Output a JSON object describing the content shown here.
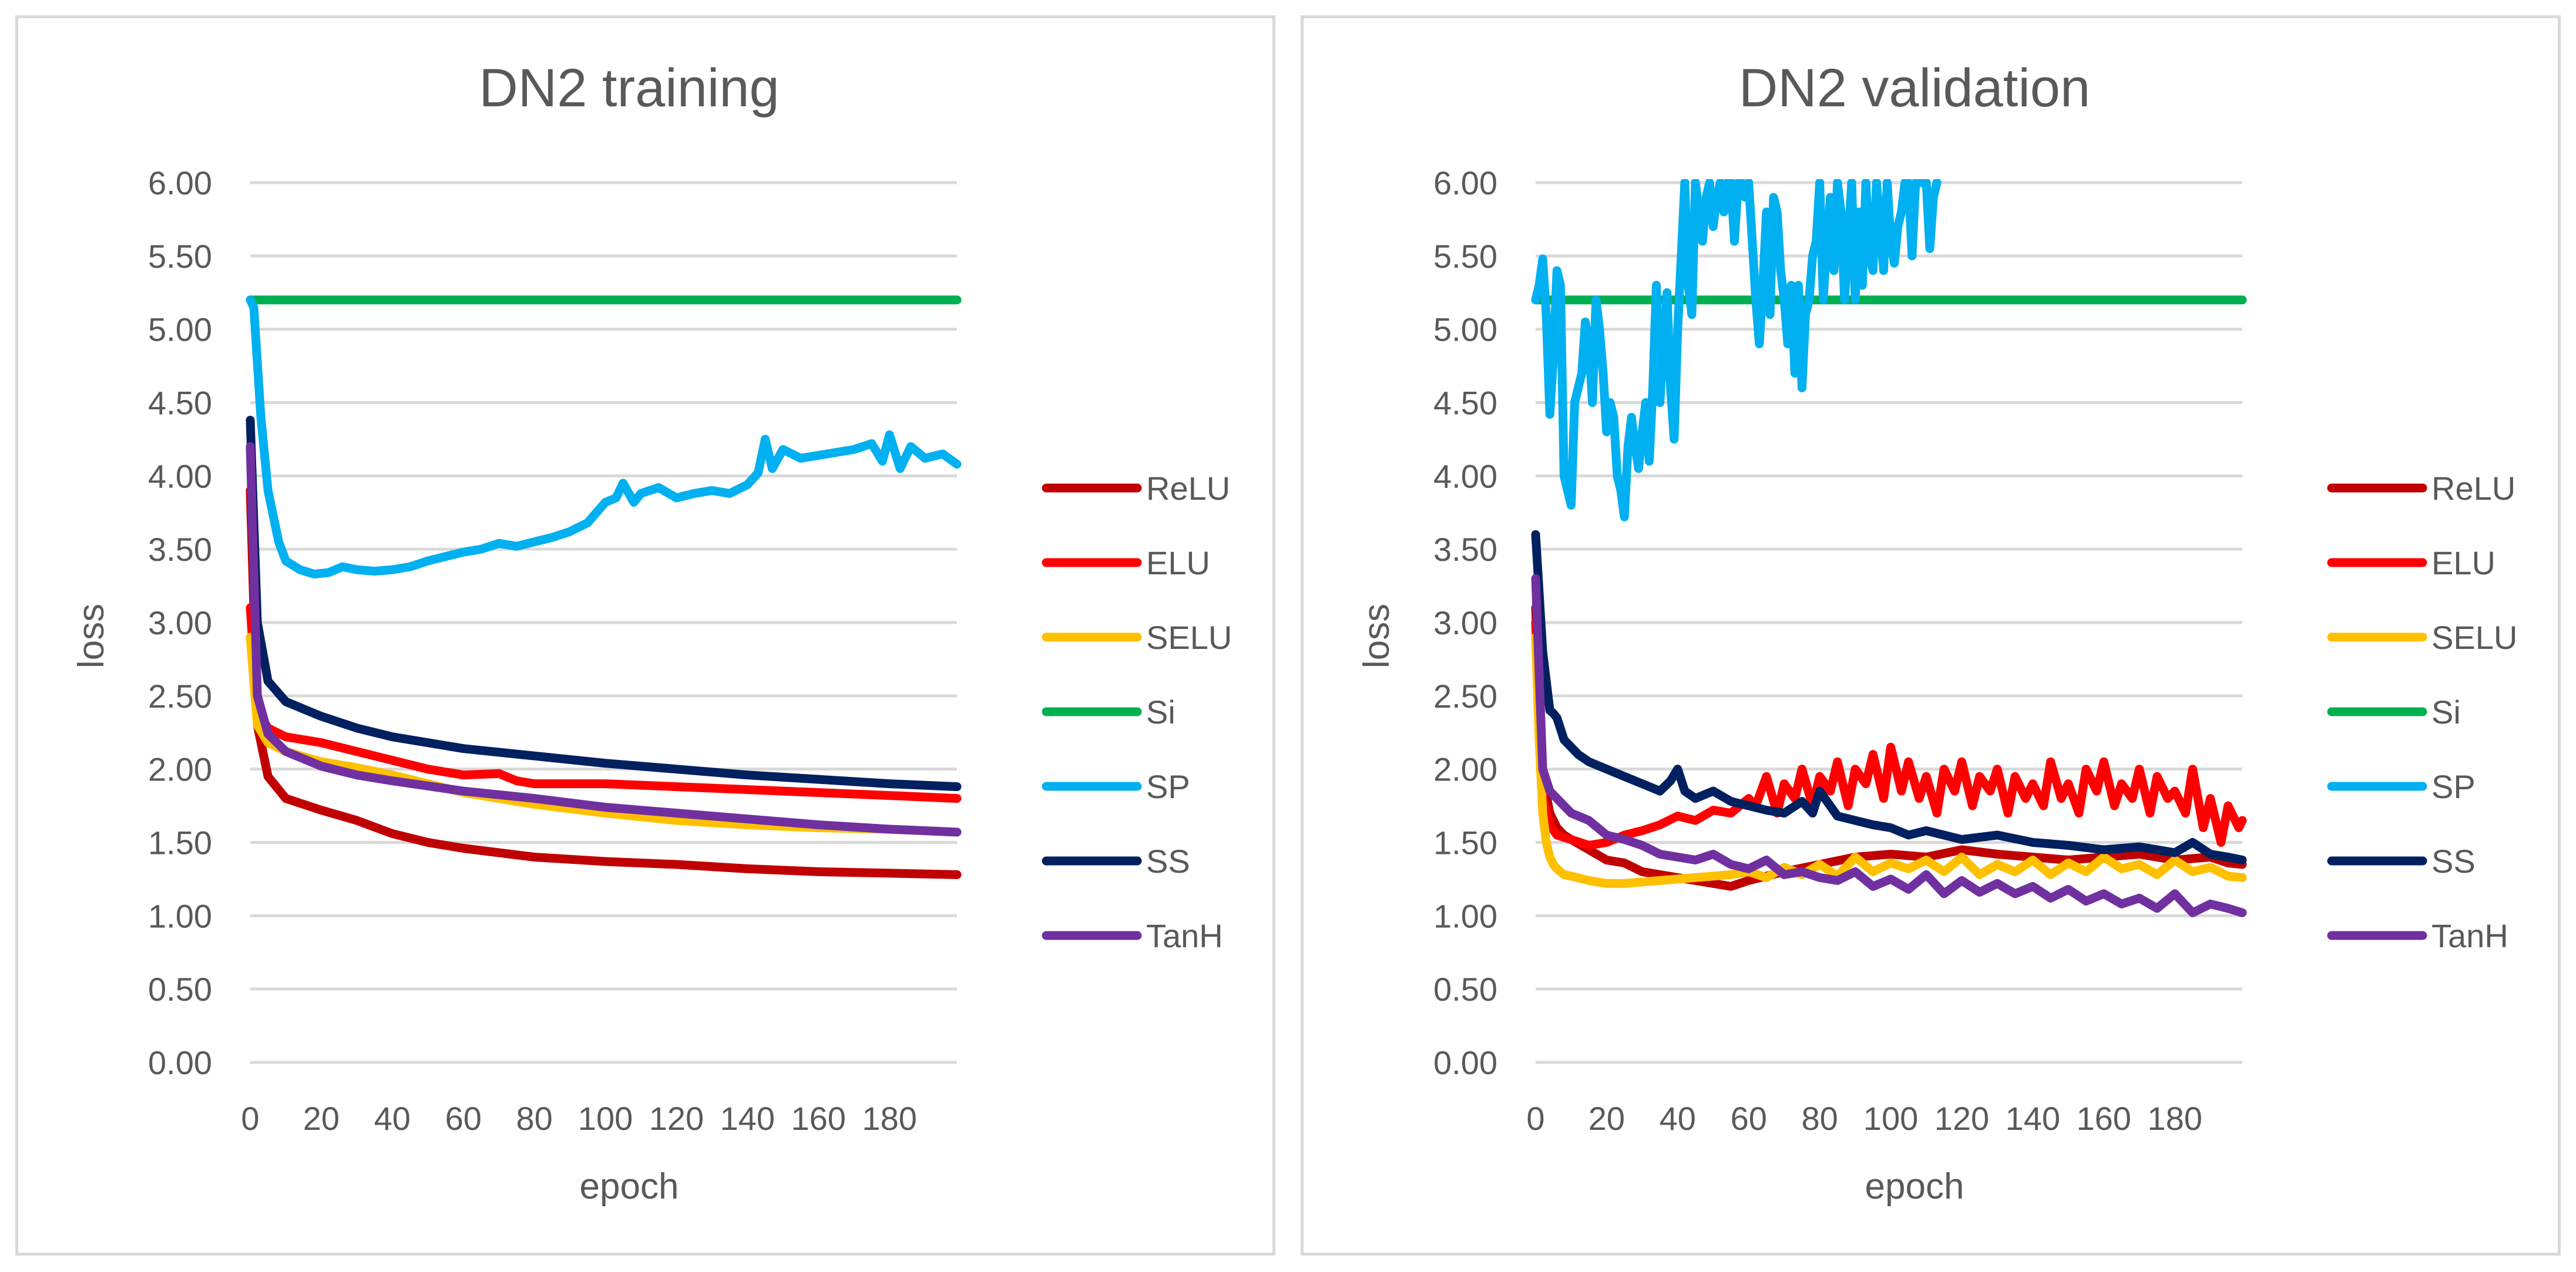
{
  "chart_data": [
    {
      "type": "line",
      "title": "DN2 training",
      "xlabel": "epoch",
      "ylabel": "loss",
      "xlim": [
        0,
        199
      ],
      "ylim": [
        0,
        6
      ],
      "xticks": [
        0,
        20,
        40,
        60,
        80,
        100,
        120,
        140,
        160,
        180
      ],
      "yticks": [
        "0.00",
        "0.50",
        "1.00",
        "1.50",
        "2.00",
        "2.50",
        "3.00",
        "3.50",
        "4.00",
        "4.50",
        "5.00",
        "5.50",
        "6.00"
      ],
      "grid": true,
      "legend_position": "right",
      "series": [
        {
          "name": "ReLU",
          "color": "#C00000",
          "x": [
            0,
            2,
            5,
            10,
            15,
            20,
            30,
            40,
            50,
            60,
            80,
            100,
            120,
            140,
            160,
            180,
            199
          ],
          "values": [
            3.9,
            2.3,
            1.95,
            1.8,
            1.76,
            1.72,
            1.65,
            1.56,
            1.5,
            1.46,
            1.4,
            1.37,
            1.35,
            1.32,
            1.3,
            1.29,
            1.28
          ]
        },
        {
          "name": "ELU",
          "color": "#FF0000",
          "x": [
            0,
            2,
            5,
            10,
            20,
            30,
            40,
            50,
            60,
            70,
            75,
            80,
            100,
            120,
            140,
            160,
            180,
            199
          ],
          "values": [
            3.1,
            2.4,
            2.28,
            2.22,
            2.18,
            2.12,
            2.06,
            2.0,
            1.96,
            1.97,
            1.92,
            1.9,
            1.9,
            1.88,
            1.86,
            1.84,
            1.82,
            1.8
          ]
        },
        {
          "name": "SELU",
          "color": "#FFC000",
          "x": [
            0,
            2,
            5,
            10,
            20,
            30,
            40,
            50,
            60,
            80,
            100,
            120,
            140,
            160,
            180,
            199
          ],
          "values": [
            2.9,
            2.3,
            2.18,
            2.12,
            2.05,
            2.01,
            1.96,
            1.9,
            1.84,
            1.76,
            1.7,
            1.65,
            1.62,
            1.6,
            1.59,
            1.57
          ]
        },
        {
          "name": "Si",
          "color": "#00B050",
          "x": [
            0,
            199
          ],
          "values": [
            5.2,
            5.2
          ]
        },
        {
          "name": "SP",
          "color": "#00B0F0",
          "x": [
            0,
            1,
            3,
            5,
            8,
            10,
            14,
            18,
            22,
            26,
            30,
            35,
            40,
            45,
            50,
            55,
            60,
            65,
            70,
            75,
            80,
            85,
            90,
            95,
            100,
            103,
            105,
            108,
            110,
            115,
            120,
            125,
            130,
            135,
            140,
            143,
            145,
            147,
            150,
            155,
            160,
            165,
            170,
            175,
            178,
            180,
            183,
            186,
            190,
            195,
            199
          ],
          "values": [
            5.2,
            5.15,
            4.4,
            3.9,
            3.55,
            3.42,
            3.36,
            3.33,
            3.34,
            3.38,
            3.36,
            3.35,
            3.36,
            3.38,
            3.42,
            3.45,
            3.48,
            3.5,
            3.54,
            3.52,
            3.55,
            3.58,
            3.62,
            3.68,
            3.82,
            3.85,
            3.95,
            3.82,
            3.88,
            3.92,
            3.85,
            3.88,
            3.9,
            3.88,
            3.94,
            4.02,
            4.25,
            4.05,
            4.18,
            4.12,
            4.14,
            4.16,
            4.18,
            4.22,
            4.1,
            4.28,
            4.05,
            4.2,
            4.12,
            4.15,
            4.08
          ]
        },
        {
          "name": "SS",
          "color": "#002060",
          "x": [
            0,
            2,
            5,
            10,
            20,
            30,
            40,
            60,
            80,
            100,
            120,
            140,
            160,
            180,
            199
          ],
          "values": [
            4.38,
            3.0,
            2.6,
            2.46,
            2.36,
            2.28,
            2.22,
            2.14,
            2.09,
            2.04,
            2.0,
            1.96,
            1.93,
            1.9,
            1.88
          ]
        },
        {
          "name": "TanH",
          "color": "#7030A0",
          "x": [
            0,
            2,
            5,
            10,
            20,
            30,
            40,
            60,
            80,
            100,
            120,
            140,
            160,
            180,
            199
          ],
          "values": [
            4.2,
            2.5,
            2.24,
            2.12,
            2.02,
            1.96,
            1.92,
            1.85,
            1.8,
            1.74,
            1.7,
            1.66,
            1.62,
            1.59,
            1.57
          ]
        }
      ]
    },
    {
      "type": "line",
      "title": "DN2 validation",
      "xlabel": "epoch",
      "ylabel": "loss",
      "xlim": [
        0,
        199
      ],
      "ylim": [
        0,
        6
      ],
      "xticks": [
        0,
        20,
        40,
        60,
        80,
        100,
        120,
        140,
        160,
        180
      ],
      "yticks": [
        "0.00",
        "0.50",
        "1.00",
        "1.50",
        "2.00",
        "2.50",
        "3.00",
        "3.50",
        "4.00",
        "4.50",
        "5.00",
        "5.50",
        "6.00"
      ],
      "grid": true,
      "legend_position": "right",
      "series": [
        {
          "name": "ReLU",
          "color": "#C00000",
          "x": [
            0,
            2,
            4,
            6,
            8,
            10,
            15,
            20,
            25,
            30,
            35,
            40,
            45,
            50,
            55,
            60,
            70,
            80,
            90,
            100,
            110,
            120,
            130,
            140,
            150,
            160,
            170,
            180,
            190,
            195,
            199
          ],
          "values": [
            3.1,
            1.95,
            1.7,
            1.6,
            1.55,
            1.52,
            1.45,
            1.38,
            1.36,
            1.3,
            1.28,
            1.26,
            1.24,
            1.22,
            1.2,
            1.24,
            1.3,
            1.35,
            1.4,
            1.42,
            1.4,
            1.45,
            1.42,
            1.4,
            1.38,
            1.4,
            1.42,
            1.38,
            1.4,
            1.36,
            1.35
          ]
        },
        {
          "name": "ELU",
          "color": "#FF0000",
          "x": [
            0,
            2,
            4,
            6,
            10,
            15,
            20,
            25,
            30,
            35,
            40,
            45,
            50,
            55,
            60,
            62,
            65,
            68,
            70,
            73,
            75,
            78,
            80,
            83,
            85,
            88,
            90,
            93,
            95,
            98,
            100,
            103,
            105,
            108,
            110,
            113,
            115,
            118,
            120,
            123,
            125,
            128,
            130,
            133,
            135,
            138,
            140,
            143,
            145,
            148,
            150,
            153,
            155,
            158,
            160,
            163,
            165,
            168,
            170,
            173,
            175,
            178,
            180,
            183,
            185,
            188,
            190,
            193,
            195,
            198,
            199
          ],
          "values": [
            3.0,
            1.8,
            1.62,
            1.55,
            1.52,
            1.48,
            1.5,
            1.55,
            1.58,
            1.62,
            1.68,
            1.65,
            1.72,
            1.7,
            1.8,
            1.75,
            1.95,
            1.7,
            1.9,
            1.8,
            2.0,
            1.75,
            1.95,
            1.85,
            2.05,
            1.75,
            2.0,
            1.9,
            2.1,
            1.8,
            2.15,
            1.85,
            2.05,
            1.8,
            1.95,
            1.7,
            2.0,
            1.85,
            2.05,
            1.75,
            1.95,
            1.85,
            2.0,
            1.7,
            1.95,
            1.8,
            1.9,
            1.75,
            2.05,
            1.8,
            1.9,
            1.7,
            2.0,
            1.85,
            2.05,
            1.75,
            1.9,
            1.8,
            2.0,
            1.7,
            1.95,
            1.8,
            1.85,
            1.7,
            2.0,
            1.6,
            1.8,
            1.5,
            1.75,
            1.6,
            1.65
          ]
        },
        {
          "name": "SELU",
          "color": "#FFC000",
          "x": [
            0,
            1,
            2,
            3,
            4,
            5,
            6,
            8,
            10,
            15,
            20,
            25,
            30,
            35,
            40,
            45,
            50,
            55,
            60,
            65,
            70,
            75,
            80,
            85,
            90,
            95,
            100,
            105,
            110,
            115,
            120,
            125,
            130,
            135,
            140,
            145,
            150,
            155,
            160,
            165,
            170,
            175,
            180,
            185,
            190,
            195,
            199
          ],
          "values": [
            2.9,
            2.2,
            1.7,
            1.5,
            1.4,
            1.35,
            1.32,
            1.28,
            1.27,
            1.24,
            1.22,
            1.22,
            1.23,
            1.24,
            1.25,
            1.26,
            1.27,
            1.28,
            1.3,
            1.26,
            1.33,
            1.28,
            1.35,
            1.27,
            1.4,
            1.3,
            1.36,
            1.32,
            1.38,
            1.3,
            1.4,
            1.28,
            1.35,
            1.3,
            1.38,
            1.28,
            1.36,
            1.3,
            1.4,
            1.32,
            1.35,
            1.28,
            1.38,
            1.3,
            1.33,
            1.27,
            1.26
          ]
        },
        {
          "name": "Si",
          "color": "#00B050",
          "x": [
            0,
            199
          ],
          "values": [
            5.2,
            5.2
          ]
        },
        {
          "name": "SP",
          "color": "#00B0F0",
          "x": [
            0,
            1,
            2,
            3,
            4,
            5,
            6,
            7,
            8,
            9,
            10,
            11,
            12,
            13,
            14,
            15,
            16,
            17,
            18,
            19,
            20,
            21,
            22,
            23,
            24,
            25,
            26,
            27,
            28,
            29,
            30,
            31,
            32,
            33,
            34,
            35,
            36,
            37,
            38,
            39,
            40,
            41,
            42,
            43,
            44,
            45,
            46,
            47,
            48,
            49,
            50,
            51,
            52,
            53,
            54,
            55,
            56,
            57,
            58,
            59,
            60,
            61,
            62,
            63,
            64,
            65,
            66,
            67,
            68,
            69,
            70,
            71,
            72,
            73,
            74,
            75,
            76,
            77,
            78,
            79,
            80,
            81,
            82,
            83,
            84,
            85,
            86,
            87,
            88,
            89,
            90,
            91,
            92,
            93,
            94,
            95,
            96,
            97,
            98,
            99,
            100,
            101,
            102,
            103,
            104,
            105,
            106,
            107,
            108,
            109,
            110,
            111,
            112,
            113
          ],
          "values": [
            5.2,
            5.3,
            5.48,
            5.1,
            4.42,
            4.8,
            5.4,
            5.3,
            4.0,
            3.9,
            3.8,
            4.5,
            4.6,
            4.7,
            5.05,
            4.9,
            4.5,
            5.2,
            5.0,
            4.7,
            4.3,
            4.5,
            4.4,
            4.0,
            3.9,
            3.72,
            4.2,
            4.4,
            4.2,
            4.05,
            4.3,
            4.5,
            4.1,
            4.6,
            5.3,
            4.5,
            4.9,
            5.25,
            4.6,
            4.25,
            5.0,
            5.5,
            6.0,
            5.3,
            5.1,
            6.0,
            5.8,
            5.6,
            5.9,
            6.0,
            5.7,
            5.9,
            6.0,
            5.8,
            6.0,
            6.0,
            5.6,
            6.0,
            6.0,
            5.9,
            6.0,
            5.6,
            5.2,
            4.9,
            5.3,
            5.8,
            5.1,
            5.9,
            5.8,
            5.4,
            5.2,
            4.9,
            5.3,
            4.7,
            5.3,
            4.6,
            5.1,
            5.2,
            5.5,
            5.6,
            6.0,
            5.2,
            5.6,
            5.9,
            5.4,
            6.0,
            5.8,
            5.2,
            5.6,
            6.0,
            5.2,
            5.8,
            5.3,
            6.0,
            5.5,
            5.4,
            6.0,
            5.7,
            5.4,
            6.0,
            5.6,
            5.45,
            5.7,
            5.8,
            6.0,
            6.0,
            5.5,
            6.0,
            6.0,
            6.0,
            6.0,
            5.55,
            5.9,
            6.0
          ]
        },
        {
          "name": "SS",
          "color": "#002060",
          "x": [
            0,
            2,
            4,
            5,
            6,
            8,
            10,
            12,
            15,
            20,
            25,
            30,
            35,
            38,
            40,
            42,
            45,
            50,
            55,
            60,
            65,
            70,
            75,
            78,
            80,
            85,
            90,
            95,
            100,
            105,
            110,
            120,
            130,
            140,
            150,
            160,
            170,
            180,
            185,
            190,
            195,
            199
          ],
          "values": [
            3.6,
            2.8,
            2.4,
            2.38,
            2.35,
            2.2,
            2.15,
            2.1,
            2.05,
            2.0,
            1.95,
            1.9,
            1.85,
            1.92,
            2.0,
            1.85,
            1.8,
            1.85,
            1.78,
            1.75,
            1.72,
            1.7,
            1.78,
            1.7,
            1.85,
            1.68,
            1.65,
            1.62,
            1.6,
            1.55,
            1.58,
            1.52,
            1.55,
            1.5,
            1.48,
            1.45,
            1.47,
            1.43,
            1.5,
            1.42,
            1.4,
            1.38
          ]
        },
        {
          "name": "TanH",
          "color": "#7030A0",
          "x": [
            0,
            2,
            4,
            6,
            8,
            10,
            15,
            20,
            25,
            30,
            35,
            40,
            45,
            50,
            55,
            60,
            65,
            70,
            75,
            80,
            85,
            90,
            95,
            100,
            105,
            110,
            115,
            120,
            125,
            130,
            135,
            140,
            145,
            150,
            155,
            160,
            165,
            170,
            175,
            180,
            185,
            190,
            195,
            199
          ],
          "values": [
            3.3,
            2.0,
            1.85,
            1.8,
            1.75,
            1.7,
            1.65,
            1.55,
            1.52,
            1.48,
            1.42,
            1.4,
            1.38,
            1.42,
            1.35,
            1.32,
            1.38,
            1.28,
            1.3,
            1.26,
            1.24,
            1.3,
            1.2,
            1.25,
            1.18,
            1.28,
            1.15,
            1.24,
            1.16,
            1.22,
            1.15,
            1.2,
            1.12,
            1.18,
            1.1,
            1.15,
            1.08,
            1.12,
            1.05,
            1.15,
            1.02,
            1.08,
            1.05,
            1.02
          ]
        }
      ]
    }
  ]
}
